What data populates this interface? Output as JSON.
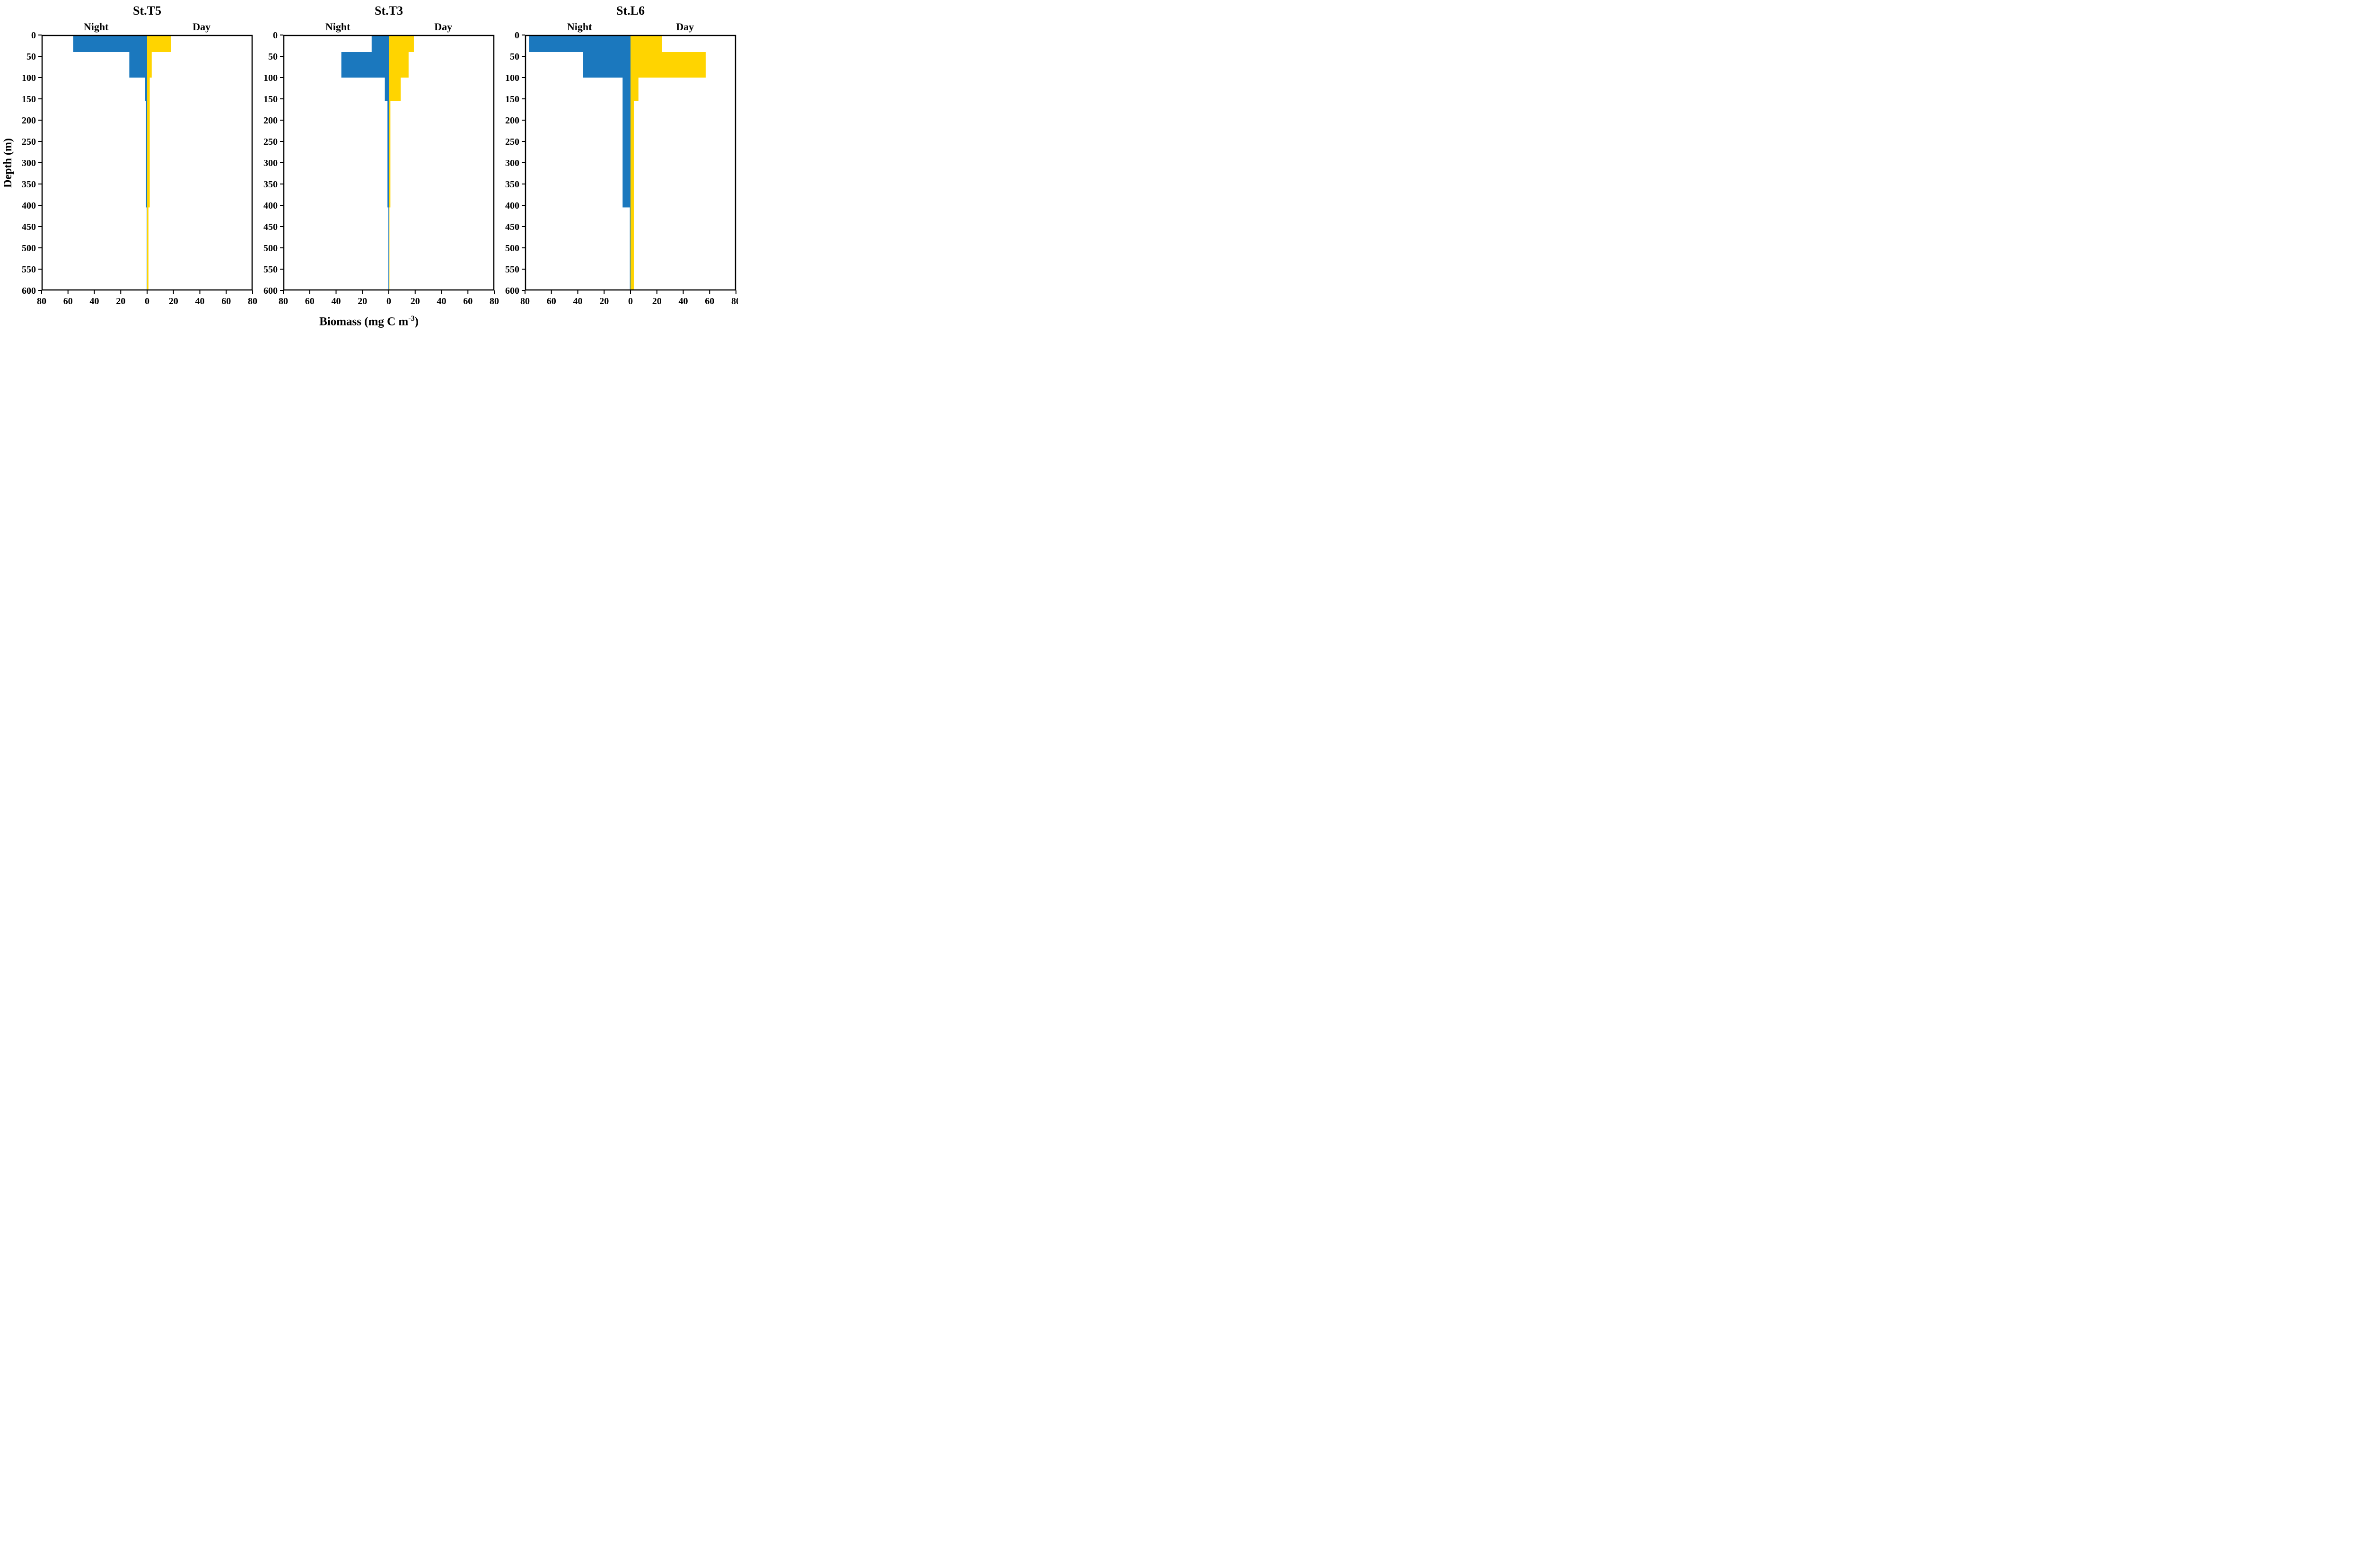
{
  "figure": {
    "background": "#ffffff",
    "axis_color": "#000000",
    "ylabel": "Depth (m)",
    "xlabel_prefix": "Biomass (mg C m",
    "xlabel_superscript": "-3",
    "xlabel_suffix": ")",
    "night_label": "Night",
    "day_label": "Day",
    "colors": {
      "night": "#1B78BE",
      "day": "#FFD400"
    },
    "x_tick_labels": [
      "80",
      "60",
      "40",
      "20",
      "0",
      "20",
      "40",
      "60",
      "80"
    ],
    "y_tick_labels": [
      "0",
      "50",
      "100",
      "150",
      "200",
      "250",
      "300",
      "350",
      "400",
      "450",
      "500",
      "550",
      "600"
    ],
    "xlim": [
      -80,
      80
    ],
    "ylim": [
      0,
      600
    ]
  },
  "chart_data": [
    {
      "type": "bar",
      "orientation": "diverging-horizontal",
      "title": "St.T5",
      "xlabel": "Biomass (mg C m-3)",
      "ylabel": "Depth (m)",
      "xlim": [
        -80,
        80
      ],
      "ylim": [
        0,
        600
      ],
      "depth_bins": [
        [
          0,
          40
        ],
        [
          40,
          100
        ],
        [
          100,
          155
        ],
        [
          155,
          405
        ],
        [
          405,
          600
        ]
      ],
      "series": [
        {
          "name": "Night",
          "side": "left",
          "color": "#1B78BE",
          "values": [
            56,
            13.5,
            1.5,
            0.8,
            0.3
          ]
        },
        {
          "name": "Day",
          "side": "right",
          "color": "#FFD400",
          "values": [
            18,
            3.5,
            2,
            2,
            1
          ]
        }
      ]
    },
    {
      "type": "bar",
      "orientation": "diverging-horizontal",
      "title": "St.T3",
      "xlabel": "Biomass (mg C m-3)",
      "ylabel": "Depth (m)",
      "xlim": [
        -80,
        80
      ],
      "ylim": [
        0,
        600
      ],
      "depth_bins": [
        [
          0,
          40
        ],
        [
          40,
          100
        ],
        [
          100,
          155
        ],
        [
          155,
          405
        ],
        [
          405,
          600
        ]
      ],
      "series": [
        {
          "name": "Night",
          "side": "left",
          "color": "#1B78BE",
          "values": [
            13,
            36,
            3,
            1,
            0.3
          ]
        },
        {
          "name": "Day",
          "side": "right",
          "color": "#FFD400",
          "values": [
            19,
            15,
            9,
            1.2,
            0.5
          ]
        }
      ]
    },
    {
      "type": "bar",
      "orientation": "diverging-horizontal",
      "title": "St.L6",
      "xlabel": "Biomass (mg C m-3)",
      "ylabel": "Depth (m)",
      "xlim": [
        -80,
        80
      ],
      "ylim": [
        0,
        600
      ],
      "depth_bins": [
        [
          0,
          40
        ],
        [
          40,
          100
        ],
        [
          100,
          155
        ],
        [
          155,
          405
        ],
        [
          405,
          600
        ]
      ],
      "series": [
        {
          "name": "Night",
          "side": "left",
          "color": "#1B78BE",
          "values": [
            77,
            36,
            6,
            6,
            0.5
          ]
        },
        {
          "name": "Day",
          "side": "right",
          "color": "#FFD400",
          "values": [
            24,
            57,
            6,
            2.5,
            2.5
          ]
        }
      ]
    }
  ]
}
